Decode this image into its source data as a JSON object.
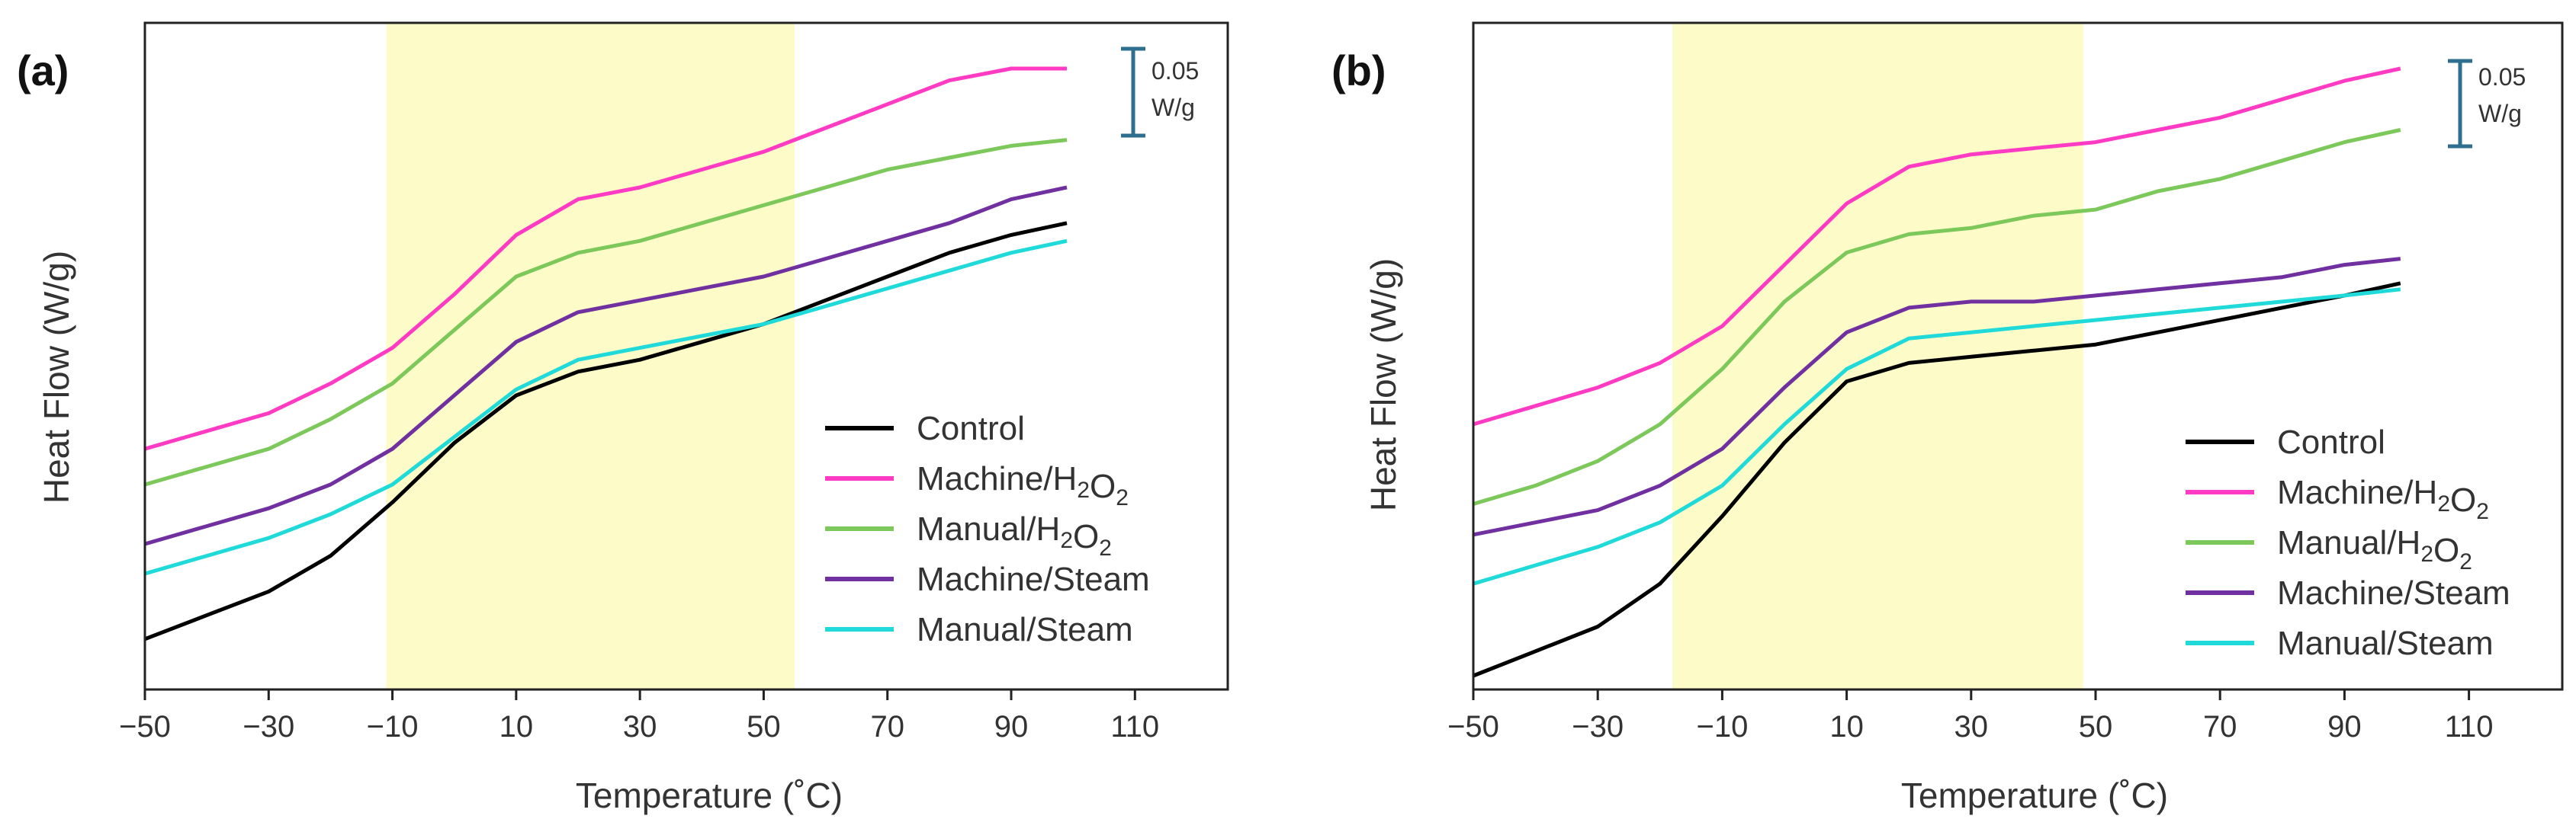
{
  "chart_data": [
    {
      "type": "line",
      "panel_label": "(a)",
      "xlabel": "Temperature (˚C)",
      "ylabel": "Heat Flow (W/g)",
      "xlim": [
        -50,
        125
      ],
      "ylim": [
        0,
        1
      ],
      "xticks": [
        -50,
        -30,
        -10,
        10,
        30,
        50,
        70,
        90,
        110
      ],
      "xtick_labels": [
        "−50",
        "−30",
        "−10",
        "10",
        "30",
        "50",
        "70",
        "90",
        "110"
      ],
      "highlight_range": [
        -11,
        55
      ],
      "highlight_color": "#fdfcc8",
      "scale_bar": {
        "line1": "0.05",
        "line2": "W/g",
        "color": "#2e6e8e"
      },
      "legend": {
        "position": "bottom-right"
      },
      "series": [
        {
          "name": "Control",
          "color": "#000000",
          "points": [
            [
              -50,
              0.04
            ],
            [
              -40,
              0.08
            ],
            [
              -30,
              0.12
            ],
            [
              -20,
              0.18
            ],
            [
              -10,
              0.27
            ],
            [
              0,
              0.37
            ],
            [
              10,
              0.45
            ],
            [
              20,
              0.49
            ],
            [
              30,
              0.51
            ],
            [
              40,
              0.54
            ],
            [
              50,
              0.57
            ],
            [
              60,
              0.61
            ],
            [
              70,
              0.65
            ],
            [
              80,
              0.69
            ],
            [
              90,
              0.72
            ],
            [
              99,
              0.74
            ]
          ]
        },
        {
          "name": "Machine/H₂O₂",
          "color": "#ff3bc4",
          "points": [
            [
              -50,
              0.36
            ],
            [
              -40,
              0.39
            ],
            [
              -30,
              0.42
            ],
            [
              -20,
              0.47
            ],
            [
              -10,
              0.53
            ],
            [
              0,
              0.62
            ],
            [
              10,
              0.72
            ],
            [
              20,
              0.78
            ],
            [
              30,
              0.8
            ],
            [
              40,
              0.83
            ],
            [
              50,
              0.86
            ],
            [
              60,
              0.9
            ],
            [
              70,
              0.94
            ],
            [
              80,
              0.98
            ],
            [
              90,
              1.0
            ],
            [
              99,
              1.0
            ]
          ]
        },
        {
          "name": "Manual/H₂O₂",
          "color": "#7dc85a",
          "points": [
            [
              -50,
              0.3
            ],
            [
              -40,
              0.33
            ],
            [
              -30,
              0.36
            ],
            [
              -20,
              0.41
            ],
            [
              -10,
              0.47
            ],
            [
              0,
              0.56
            ],
            [
              10,
              0.65
            ],
            [
              20,
              0.69
            ],
            [
              30,
              0.71
            ],
            [
              40,
              0.74
            ],
            [
              50,
              0.77
            ],
            [
              60,
              0.8
            ],
            [
              70,
              0.83
            ],
            [
              80,
              0.85
            ],
            [
              90,
              0.87
            ],
            [
              99,
              0.88
            ]
          ]
        },
        {
          "name": "Machine/Steam",
          "color": "#7030a0",
          "points": [
            [
              -50,
              0.2
            ],
            [
              -40,
              0.23
            ],
            [
              -30,
              0.26
            ],
            [
              -20,
              0.3
            ],
            [
              -10,
              0.36
            ],
            [
              0,
              0.45
            ],
            [
              10,
              0.54
            ],
            [
              20,
              0.59
            ],
            [
              30,
              0.61
            ],
            [
              40,
              0.63
            ],
            [
              50,
              0.65
            ],
            [
              60,
              0.68
            ],
            [
              70,
              0.71
            ],
            [
              80,
              0.74
            ],
            [
              90,
              0.78
            ],
            [
              99,
              0.8
            ]
          ]
        },
        {
          "name": "Manual/Steam",
          "color": "#20dada",
          "points": [
            [
              -50,
              0.15
            ],
            [
              -40,
              0.18
            ],
            [
              -30,
              0.21
            ],
            [
              -20,
              0.25
            ],
            [
              -10,
              0.3
            ],
            [
              0,
              0.38
            ],
            [
              10,
              0.46
            ],
            [
              20,
              0.51
            ],
            [
              30,
              0.53
            ],
            [
              40,
              0.55
            ],
            [
              50,
              0.57
            ],
            [
              60,
              0.6
            ],
            [
              70,
              0.63
            ],
            [
              80,
              0.66
            ],
            [
              90,
              0.69
            ],
            [
              99,
              0.71
            ]
          ]
        }
      ]
    },
    {
      "type": "line",
      "panel_label": "(b)",
      "xlabel": "Temperature (˚C)",
      "ylabel": "Heat Flow (W/g)",
      "xlim": [
        -50,
        125
      ],
      "ylim": [
        0,
        1
      ],
      "xticks": [
        -50,
        -30,
        -10,
        10,
        30,
        50,
        70,
        90,
        110
      ],
      "xtick_labels": [
        "−50",
        "−30",
        "−10",
        "10",
        "30",
        "50",
        "70",
        "90",
        "110"
      ],
      "highlight_range": [
        -18,
        48
      ],
      "highlight_color": "#fdfcc8",
      "scale_bar": {
        "line1": "0.05",
        "line2": "W/g",
        "color": "#2e6e8e"
      },
      "legend": {
        "position": "bottom-right"
      },
      "series": [
        {
          "name": "Control",
          "color": "#000000",
          "points": [
            [
              -50,
              0.01
            ],
            [
              -40,
              0.05
            ],
            [
              -30,
              0.09
            ],
            [
              -20,
              0.16
            ],
            [
              -10,
              0.27
            ],
            [
              0,
              0.39
            ],
            [
              10,
              0.49
            ],
            [
              20,
              0.52
            ],
            [
              30,
              0.53
            ],
            [
              40,
              0.54
            ],
            [
              50,
              0.55
            ],
            [
              60,
              0.57
            ],
            [
              70,
              0.59
            ],
            [
              80,
              0.61
            ],
            [
              90,
              0.63
            ],
            [
              99,
              0.65
            ]
          ]
        },
        {
          "name": "Machine/H₂O₂",
          "color": "#ff3bc4",
          "points": [
            [
              -50,
              0.42
            ],
            [
              -40,
              0.45
            ],
            [
              -30,
              0.48
            ],
            [
              -20,
              0.52
            ],
            [
              -10,
              0.58
            ],
            [
              0,
              0.68
            ],
            [
              10,
              0.78
            ],
            [
              20,
              0.84
            ],
            [
              30,
              0.86
            ],
            [
              40,
              0.87
            ],
            [
              50,
              0.88
            ],
            [
              60,
              0.9
            ],
            [
              70,
              0.92
            ],
            [
              80,
              0.95
            ],
            [
              90,
              0.98
            ],
            [
              99,
              1.0
            ]
          ]
        },
        {
          "name": "Manual/H₂O₂",
          "color": "#7dc85a",
          "points": [
            [
              -50,
              0.29
            ],
            [
              -40,
              0.32
            ],
            [
              -30,
              0.36
            ],
            [
              -20,
              0.42
            ],
            [
              -10,
              0.51
            ],
            [
              0,
              0.62
            ],
            [
              10,
              0.7
            ],
            [
              20,
              0.73
            ],
            [
              30,
              0.74
            ],
            [
              40,
              0.76
            ],
            [
              50,
              0.77
            ],
            [
              60,
              0.8
            ],
            [
              70,
              0.82
            ],
            [
              80,
              0.85
            ],
            [
              90,
              0.88
            ],
            [
              99,
              0.9
            ]
          ]
        },
        {
          "name": "Machine/Steam",
          "color": "#7030a0",
          "points": [
            [
              -50,
              0.24
            ],
            [
              -40,
              0.26
            ],
            [
              -30,
              0.28
            ],
            [
              -20,
              0.32
            ],
            [
              -10,
              0.38
            ],
            [
              0,
              0.48
            ],
            [
              10,
              0.57
            ],
            [
              20,
              0.61
            ],
            [
              30,
              0.62
            ],
            [
              40,
              0.62
            ],
            [
              50,
              0.63
            ],
            [
              60,
              0.64
            ],
            [
              70,
              0.65
            ],
            [
              80,
              0.66
            ],
            [
              90,
              0.68
            ],
            [
              99,
              0.69
            ]
          ]
        },
        {
          "name": "Manual/Steam",
          "color": "#20dada",
          "points": [
            [
              -50,
              0.16
            ],
            [
              -40,
              0.19
            ],
            [
              -30,
              0.22
            ],
            [
              -20,
              0.26
            ],
            [
              -10,
              0.32
            ],
            [
              0,
              0.42
            ],
            [
              10,
              0.51
            ],
            [
              20,
              0.56
            ],
            [
              30,
              0.57
            ],
            [
              40,
              0.58
            ],
            [
              50,
              0.59
            ],
            [
              60,
              0.6
            ],
            [
              70,
              0.61
            ],
            [
              80,
              0.62
            ],
            [
              90,
              0.63
            ],
            [
              99,
              0.64
            ]
          ]
        }
      ]
    }
  ]
}
